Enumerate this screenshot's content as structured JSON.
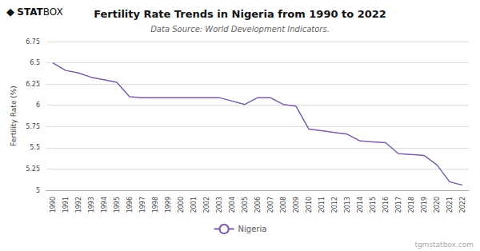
{
  "chart_data": {
    "type": "line",
    "title": "Fertility Rate Trends in Nigeria from 1990 to 2022",
    "subtitle": "Data Source: World Development Indicators.",
    "ylabel": "Fertility Rate (%)",
    "annotations": [
      "◆",
      "STAT",
      "BOX",
      "tgmstatbox.com"
    ],
    "x": [
      1990,
      1991,
      1992,
      1993,
      1994,
      1995,
      1996,
      1997,
      1998,
      1999,
      2000,
      2001,
      2002,
      2003,
      2004,
      2005,
      2006,
      2007,
      2008,
      2009,
      2010,
      2011,
      2012,
      2013,
      2014,
      2015,
      2016,
      2017,
      2018,
      2019,
      2020,
      2021,
      2022
    ],
    "series": [
      {
        "name": "Nigeria",
        "color": "#7B5EA7",
        "values": [
          6.5,
          6.41,
          6.38,
          6.33,
          6.3,
          6.27,
          6.1,
          6.09,
          6.09,
          6.09,
          6.09,
          6.09,
          6.09,
          6.09,
          6.05,
          6.01,
          6.09,
          6.09,
          6.01,
          5.99,
          5.72,
          5.7,
          5.68,
          5.66,
          5.58,
          5.57,
          5.56,
          5.43,
          5.42,
          5.41,
          5.3,
          5.1,
          5.06
        ]
      }
    ],
    "xlim": [
      1989.5,
      2022.5
    ],
    "xticks": [
      1990,
      1991,
      1992,
      1993,
      1994,
      1995,
      1996,
      1997,
      1998,
      1999,
      2000,
      2001,
      2002,
      2003,
      2004,
      2005,
      2006,
      2007,
      2008,
      2009,
      2010,
      2011,
      2012,
      2013,
      2014,
      2015,
      2016,
      2017,
      2018,
      2019,
      2020,
      2021,
      2022
    ],
    "ylim": [
      5.0,
      6.75
    ],
    "yticks": [
      5.0,
      5.25,
      5.5,
      5.75,
      6.0,
      6.25,
      6.5,
      6.75
    ],
    "grid": "y",
    "legend": "bottom"
  }
}
